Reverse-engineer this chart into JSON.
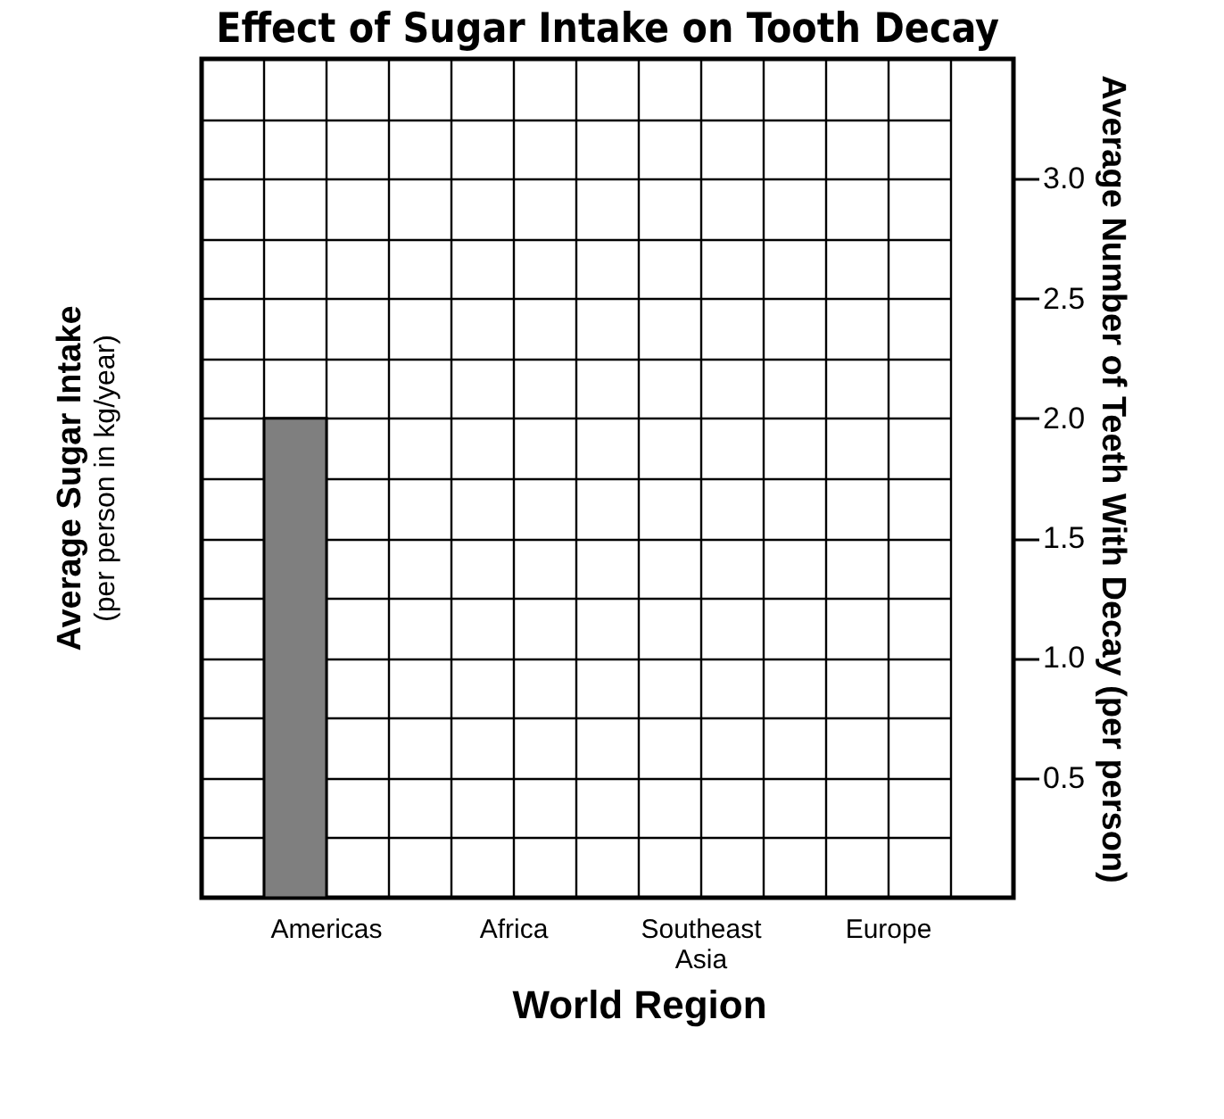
{
  "chart_data": {
    "type": "bar",
    "title": "Effect of Sugar Intake on Tooth Decay",
    "xlabel": "World Region",
    "ylabel": "Average Sugar Intake (per person in kg/year)",
    "y2label": "Average Number of Teeth With Decay (per person)",
    "categories": [
      "Americas",
      "Africa",
      "Southeast Asia",
      "Europe"
    ],
    "series": [
      {
        "color": "#7f7f7f",
        "axis": "y2",
        "values": [
          2.0,
          null,
          null,
          null
        ]
      }
    ],
    "y2lim": [
      0,
      3.5
    ],
    "y2ticks": [
      {
        "value": 0.25,
        "label": null
      },
      {
        "value": 0.5,
        "label": "0.5"
      },
      {
        "value": 0.75,
        "label": null
      },
      {
        "value": 1,
        "label": "1.0"
      },
      {
        "value": 1.25,
        "label": null
      },
      {
        "value": 1.5,
        "label": "1.5"
      },
      {
        "value": 1.75,
        "label": null
      },
      {
        "value": 2,
        "label": "2.0"
      },
      {
        "value": 2.25,
        "label": null
      },
      {
        "value": 2.5,
        "label": "2.5"
      },
      {
        "value": 2.75,
        "label": null
      },
      {
        "value": 3,
        "label": "3.0"
      },
      {
        "value": 3.25,
        "label": null
      }
    ],
    "grid": true
  }
}
